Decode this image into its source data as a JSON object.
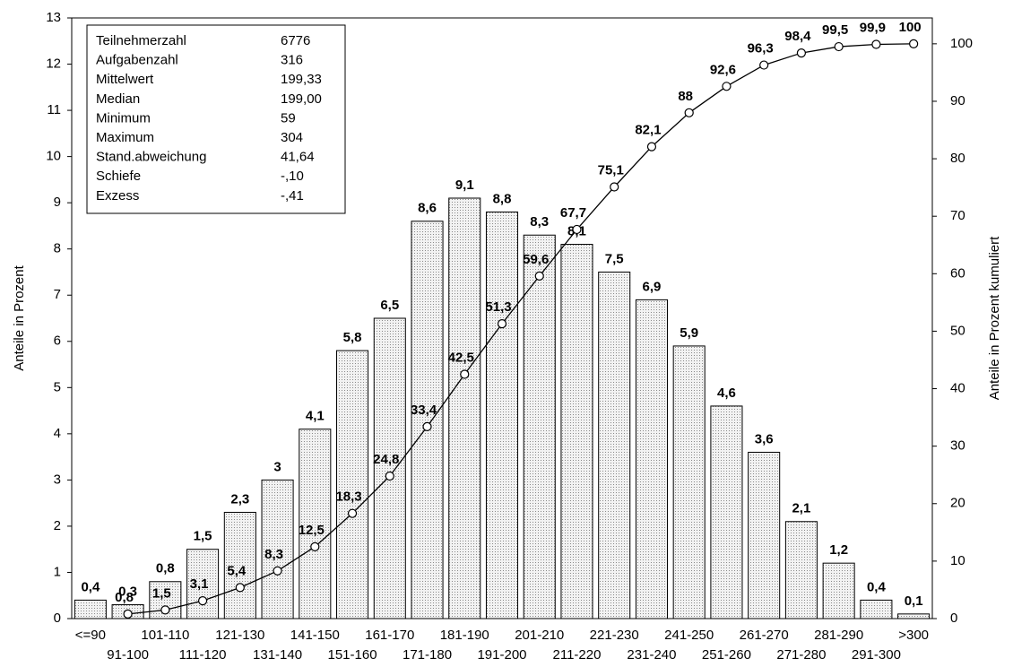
{
  "chart_data": {
    "type": "bar",
    "y_label": "Anteile in Prozent",
    "y2_label": "Anteile in Prozent kumuliert",
    "categories": [
      "<=90",
      "91-100",
      "101-110",
      "111-120",
      "121-130",
      "131-140",
      "141-150",
      "151-160",
      "161-170",
      "171-180",
      "181-190",
      "191-200",
      "201-210",
      "211-220",
      "221-230",
      "231-240",
      "241-250",
      "251-260",
      "261-270",
      "271-280",
      "281-290",
      "291-300",
      ">300"
    ],
    "series": [
      {
        "type": "bar",
        "color": "#d9d9d9",
        "values": [
          0.4,
          0.3,
          0.8,
          1.5,
          2.3,
          3,
          4.1,
          5.8,
          6.5,
          8.6,
          9.1,
          8.8,
          8.3,
          8.1,
          7.5,
          6.9,
          5.9,
          4.6,
          3.6,
          2.1,
          1.2,
          0.4,
          0.1
        ],
        "value_labels": [
          "0,4",
          "0,3",
          "0,8",
          "1,5",
          "2,3",
          "3",
          "4,1",
          "5,8",
          "6,5",
          "8,6",
          "9,1",
          "8,8",
          "8,3",
          "8,1",
          "7,5",
          "6,9",
          "5,9",
          "4,6",
          "3,6",
          "2,1",
          "1,2",
          "0,4",
          "0,1"
        ]
      },
      {
        "type": "line",
        "axis": "y2",
        "color": "#000000",
        "values": [
          null,
          0.8,
          1.5,
          3.1,
          5.4,
          8.3,
          12.5,
          18.3,
          24.8,
          33.4,
          42.5,
          51.3,
          59.6,
          67.7,
          75.1,
          82.1,
          88,
          92.6,
          96.3,
          98.4,
          99.5,
          99.9,
          100
        ],
        "value_labels": [
          null,
          "0,8",
          "1,5",
          "3,1",
          "5,4",
          "8,3",
          "12,5",
          "18,3",
          "24,8",
          "33,4",
          "42,5",
          "51,3",
          "59,6",
          "67,7",
          "75,1",
          "82,1",
          "88",
          "92,6",
          "96,3",
          "98,4",
          "99,5",
          "99,9",
          "100"
        ]
      }
    ],
    "ylim": [
      0,
      13
    ],
    "yticks": [
      0,
      1,
      2,
      3,
      4,
      5,
      6,
      7,
      8,
      9,
      10,
      11,
      12,
      13
    ],
    "y2lim": [
      0,
      104.5
    ],
    "y2ticks": [
      0,
      10,
      20,
      30,
      40,
      50,
      60,
      70,
      80,
      90,
      100
    ],
    "grid": false,
    "info_box": [
      {
        "label": "Teilnehmerzahl",
        "value": "6776"
      },
      {
        "label": "Aufgabenzahl",
        "value": "316"
      },
      {
        "label": "Mittelwert",
        "value": "199,33"
      },
      {
        "label": "Median",
        "value": "199,00"
      },
      {
        "label": "Minimum",
        "value": "59"
      },
      {
        "label": "Maximum",
        "value": "304"
      },
      {
        "label": "Stand.abweichung",
        "value": "41,64"
      },
      {
        "label": "Schiefe",
        "value": "-,10"
      },
      {
        "label": "Exzess",
        "value": "-,41"
      }
    ]
  }
}
